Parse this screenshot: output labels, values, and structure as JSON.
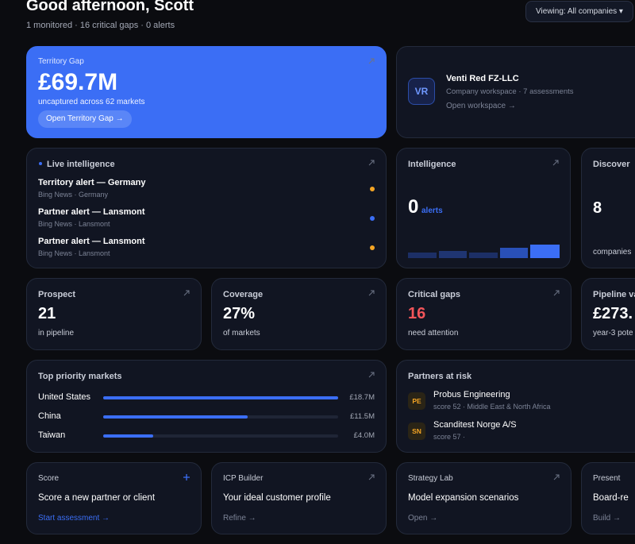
{
  "header": {
    "title": "Good afternoon, Scott",
    "subtitle": "1 monitored · 16 critical gaps · 0 alerts",
    "viewing": "Viewing: All companies ▾"
  },
  "territory_gap": {
    "label": "Territory Gap",
    "value": "£69.7M",
    "caption": "uncaptured across 62 markets",
    "action": "Open Territory Gap →"
  },
  "workspace": {
    "initials": "VR",
    "name": "Venti Red FZ-LLC",
    "meta": "Company workspace · 7 assessments",
    "action": "Open workspace →"
  },
  "live_intelligence": {
    "title": "Live intelligence",
    "items": [
      {
        "title": "Territory alert — Germany",
        "source": "Bing News · Germany",
        "dot": "#f5a524"
      },
      {
        "title": "Partner alert — Lansmont",
        "source": "Bing News · Lansmont",
        "dot": "#3b6ef5"
      },
      {
        "title": "Partner alert — Lansmont",
        "source": "Bing News · Lansmont",
        "dot": "#f5a524"
      }
    ]
  },
  "intelligence": {
    "title": "Intelligence",
    "value": "0",
    "unit": "alerts"
  },
  "discover": {
    "title": "Discover",
    "value": "8",
    "caption": "companies"
  },
  "stats": [
    {
      "title": "Prospect",
      "value": "21",
      "caption": "in pipeline",
      "color": "#ffffff"
    },
    {
      "title": "Coverage",
      "value": "27%",
      "caption": "of markets",
      "color": "#ffffff"
    },
    {
      "title": "Critical gaps",
      "value": "16",
      "caption": "need attention",
      "color": "#f2555a"
    },
    {
      "title": "Pipeline val",
      "value": "£273.",
      "caption": "year-3 pote",
      "color": "#ffffff"
    }
  ],
  "top_markets": {
    "title": "Top priority markets",
    "rows": [
      {
        "name": "United States",
        "value": 18.7,
        "label": "£18.7M"
      },
      {
        "name": "China",
        "value": 11.5,
        "label": "£11.5M"
      },
      {
        "name": "Taiwan",
        "value": 4.0,
        "label": "£4.0M"
      }
    ]
  },
  "partners": {
    "title": "Partners at risk",
    "items": [
      {
        "initials": "PE",
        "name": "Probus Engineering",
        "meta": "score 52 · Middle East & North Africa"
      },
      {
        "initials": "SN",
        "name": "Scanditest Norge A/S",
        "meta": "score 57 ·"
      }
    ]
  },
  "actions": [
    {
      "title": "Score",
      "text": "Score a new partner or client",
      "link": "Start assessment →"
    },
    {
      "title": "ICP Builder",
      "text": "Your ideal customer profile",
      "link": "Refine →"
    },
    {
      "title": "Strategy Lab",
      "text": "Model expansion scenarios",
      "link": "Open →"
    },
    {
      "title": "Present",
      "text": "Board-re",
      "link": "Build →"
    }
  ]
}
